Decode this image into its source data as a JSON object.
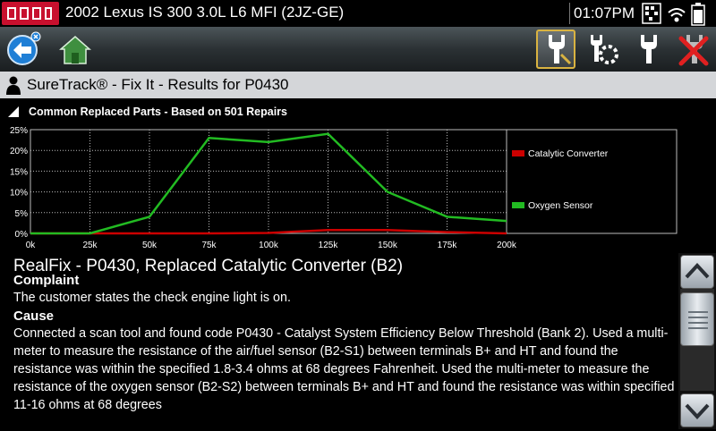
{
  "status": {
    "vehicle": "2002 Lexus IS 300 3.0L L6 MFI (2JZ-GE)",
    "time": "01:07PM"
  },
  "toolbar": {
    "buttons": [
      "back-button",
      "home-button",
      "suretrack-button",
      "tools-button",
      "settings-button",
      "exit-button"
    ]
  },
  "header": {
    "title": "SureTrack® - Fix It - Results for P0430"
  },
  "section": {
    "title": "Common Replaced Parts - Based on 501 Repairs"
  },
  "chart_data": {
    "type": "line",
    "x": [
      "0k",
      "25k",
      "50k",
      "75k",
      "100k",
      "125k",
      "150k",
      "175k",
      "200k"
    ],
    "y_ticks": [
      "25%",
      "20%",
      "15%",
      "10%",
      "5%",
      "0%"
    ],
    "ylim": [
      0,
      25
    ],
    "grid": true,
    "legend_position": "right",
    "series": [
      {
        "name": "Catalytic Converter",
        "color": "#cc0000",
        "values": [
          0,
          0,
          0,
          0,
          0.1,
          0.8,
          0.8,
          0.3,
          0
        ]
      },
      {
        "name": "Oxygen Sensor",
        "color": "#22bb22",
        "values": [
          0,
          0,
          4,
          23,
          22,
          24,
          10,
          4,
          3
        ]
      }
    ]
  },
  "realfix": {
    "title": "RealFix - P0430, Replaced Catalytic Converter (B2)",
    "complaint_heading": "Complaint",
    "complaint_text": "The customer states the check engine light is on.",
    "cause_heading": "Cause",
    "cause_text": "Connected a scan tool and found code P0430 - Catalyst System Efficiency Below Threshold (Bank 2). Used a multi-meter to measure the resistance of the air/fuel sensor (B2-S1) between terminals B+ and HT and found the resistance was within the specified 1.8-3.4 ohms at 68 degrees Fahrenheit. Used the multi-meter to measure the resistance of the oxygen sensor (B2-S2) between terminals B+ and HT and found the resistance was within specified 11-16 ohms at 68 degrees"
  }
}
